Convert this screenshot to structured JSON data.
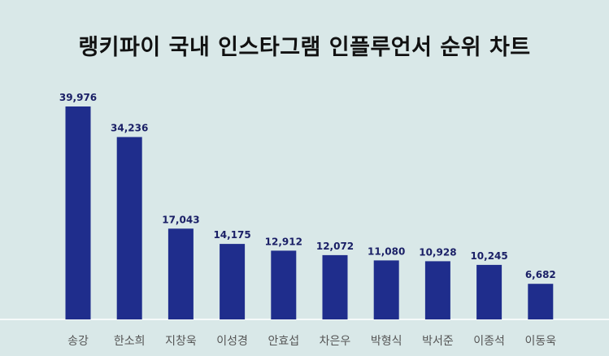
{
  "chart_data": {
    "type": "bar",
    "title": "랭키파이 국내 인스타그램 인플루언서 순위 차트",
    "xlabel": "",
    "ylabel": "",
    "categories": [
      "송강",
      "한소희",
      "지창욱",
      "이성경",
      "안효섭",
      "차은우",
      "박형식",
      "박서준",
      "이종석",
      "이동욱"
    ],
    "values": [
      39976,
      34236,
      17043,
      14175,
      12912,
      12072,
      11080,
      10928,
      10245,
      6682
    ],
    "value_labels": [
      "39,976",
      "34,236",
      "17,043",
      "14,175",
      "12,912",
      "12,072",
      "11,080",
      "10,928",
      "10,245",
      "6,682"
    ],
    "ylim": [
      0,
      40000
    ],
    "grid": false,
    "legend": "none",
    "colors": {
      "bar": "#1f2d8c",
      "value_label": "#1a1f66",
      "category_label": "#555555",
      "background": "#d9e8e8",
      "baseline": "#ffffff"
    }
  }
}
